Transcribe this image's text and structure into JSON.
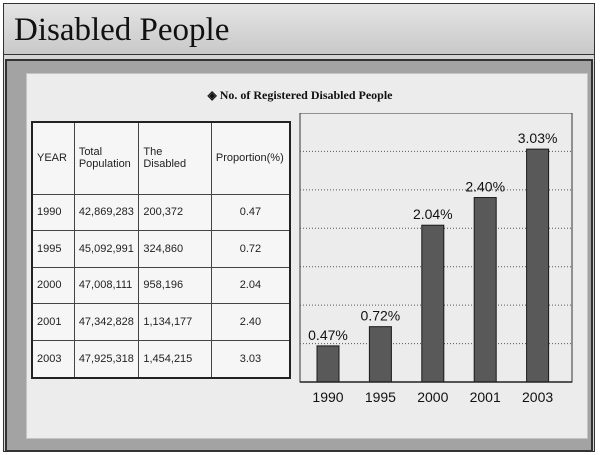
{
  "slide": {
    "title": "Disabled People"
  },
  "chart_title": "◈ No. of Registered Disabled People",
  "table": {
    "headers": [
      "YEAR",
      "Total Population",
      "The Disabled",
      "Proportion(%)"
    ],
    "rows": [
      [
        "1990",
        "42,869,283",
        "200,372",
        "0.47"
      ],
      [
        "1995",
        "45,092,991",
        "324,860",
        "0.72"
      ],
      [
        "2000",
        "47,008,111",
        "958,196",
        "2.04"
      ],
      [
        "2001",
        "47,342,828",
        "1,134,177",
        "2.40"
      ],
      [
        "2003",
        "47,925,318",
        "1,454,215",
        "3.03"
      ]
    ]
  },
  "chart_data": {
    "type": "bar",
    "categories": [
      "1990",
      "1995",
      "2000",
      "2001",
      "2003"
    ],
    "values": [
      0.47,
      0.72,
      2.04,
      2.4,
      3.03
    ],
    "data_labels": [
      "0.47%",
      "0.72%",
      "2.04%",
      "2.40%",
      "3.03%"
    ],
    "title": "◈ No. of Registered Disabled People",
    "ylim": [
      0,
      3.5
    ],
    "grid": true,
    "colors": {
      "bar": "#595959",
      "bar_edge": "#1a1a1a",
      "grid": "#555555"
    }
  }
}
